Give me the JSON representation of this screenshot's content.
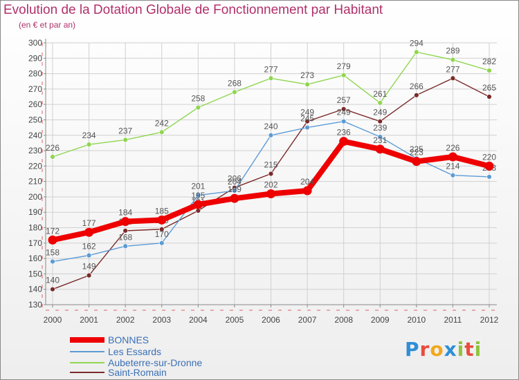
{
  "title": "Evolution de la Dotation Globale de Fonctionnement par Habitant",
  "subtitle": "(en € et par an)",
  "logo": {
    "text": "Proxiti"
  },
  "chart_data": {
    "type": "line",
    "title": "Evolution de la Dotation Globale de Fonctionnement par Habitant",
    "subtitle": "(en € et par an)",
    "xlabel": "",
    "ylabel": "",
    "ylim": [
      130,
      300
    ],
    "yticks": [
      130,
      140,
      150,
      160,
      170,
      180,
      190,
      200,
      210,
      220,
      230,
      240,
      250,
      260,
      270,
      280,
      290,
      300
    ],
    "grid": true,
    "categories": [
      "2000",
      "2001",
      "2002",
      "2003",
      "2004",
      "2005",
      "2006",
      "2007",
      "2008",
      "2009",
      "2010",
      "2011",
      "2012"
    ],
    "series": [
      {
        "name": "Aubeterre-sur-Dronne",
        "color": "#8ed64f",
        "values": [
          226,
          234,
          237,
          242,
          258,
          268,
          277,
          273,
          279,
          261,
          294,
          289,
          282
        ]
      },
      {
        "name": "Saint-Romain",
        "color": "#7a2a2a",
        "values": [
          140,
          149,
          178,
          179,
          191,
          206,
          215,
          249,
          257,
          249,
          266,
          277,
          265
        ]
      },
      {
        "name": "Les Essards",
        "color": "#5b9bd5",
        "values": [
          158,
          162,
          168,
          170,
          201,
          204,
          240,
          245,
          249,
          239,
          225,
          214,
          213
        ]
      },
      {
        "name": "BONNES",
        "color": "#ee0000",
        "values": [
          172,
          177,
          184,
          185,
          195,
          199,
          202,
          204,
          236,
          231,
          223,
          226,
          220
        ]
      }
    ],
    "legend": [
      "BONNES",
      "Les Essards",
      "Aubeterre-sur-Dronne",
      "Saint-Romain"
    ]
  }
}
